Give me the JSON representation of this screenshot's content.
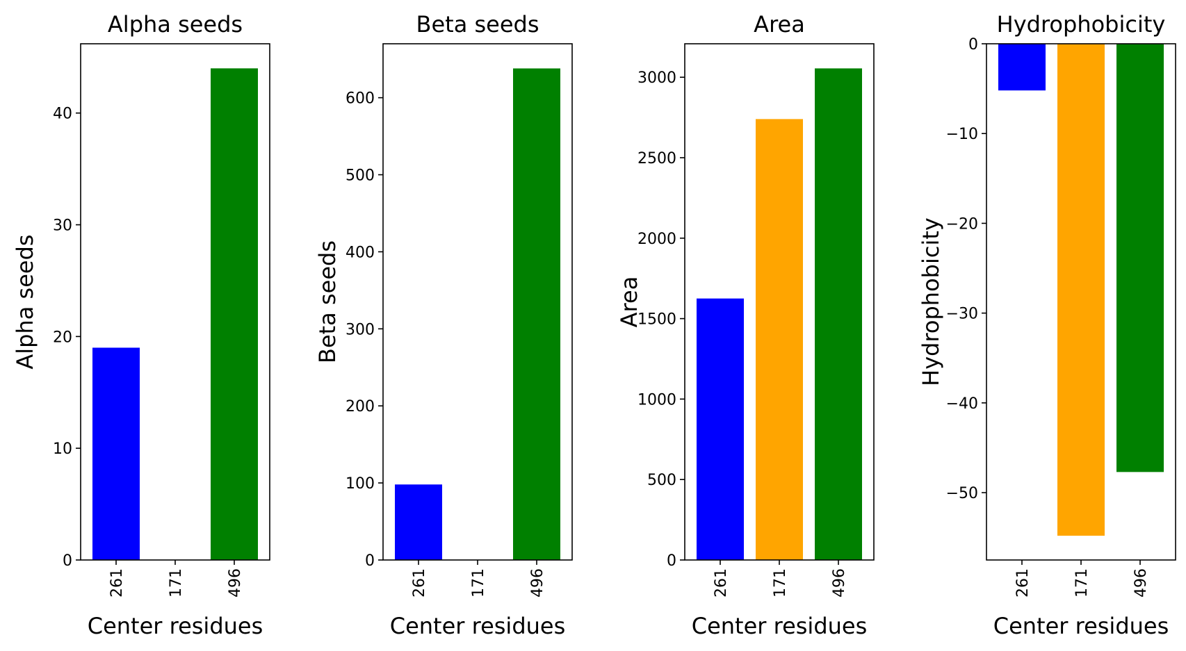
{
  "chart_data": [
    {
      "type": "bar",
      "title": "Alpha seeds",
      "xlabel": "Center residues",
      "ylabel": "Alpha seeds",
      "categories": [
        "261",
        "171",
        "496"
      ],
      "values": [
        19,
        0,
        44
      ],
      "colors": [
        "#0000ff",
        "#ffa500",
        "#008000"
      ],
      "ylim": [
        0,
        46.2
      ],
      "yticks": [
        0,
        10,
        20,
        30,
        40
      ],
      "ytick_labels": [
        "0",
        "10",
        "20",
        "30",
        "40"
      ],
      "grid": false
    },
    {
      "type": "bar",
      "title": "Beta seeds",
      "xlabel": "Center residues",
      "ylabel": "Beta seeds",
      "categories": [
        "261",
        "171",
        "496"
      ],
      "values": [
        98,
        0,
        638
      ],
      "colors": [
        "#0000ff",
        "#ffa500",
        "#008000"
      ],
      "ylim": [
        0,
        670
      ],
      "yticks": [
        0,
        100,
        200,
        300,
        400,
        500,
        600
      ],
      "ytick_labels": [
        "0",
        "100",
        "200",
        "300",
        "400",
        "500",
        "600"
      ],
      "grid": false
    },
    {
      "type": "bar",
      "title": "Area",
      "xlabel": "Center residues",
      "ylabel": "Area",
      "categories": [
        "261",
        "171",
        "496"
      ],
      "values": [
        1625,
        2740,
        3055
      ],
      "colors": [
        "#0000ff",
        "#ffa500",
        "#008000"
      ],
      "ylim": [
        0,
        3208
      ],
      "yticks": [
        0,
        500,
        1000,
        1500,
        2000,
        2500,
        3000
      ],
      "ytick_labels": [
        "0",
        "500",
        "1000",
        "1500",
        "2000",
        "2500",
        "3000"
      ],
      "grid": false
    },
    {
      "type": "bar",
      "title": "Hydrophobicity",
      "xlabel": "Center residues",
      "ylabel": "Hydrophobicity",
      "categories": [
        "261",
        "171",
        "496"
      ],
      "values": [
        -5.2,
        -54.8,
        -47.7
      ],
      "colors": [
        "#0000ff",
        "#ffa500",
        "#008000"
      ],
      "ylim": [
        -57.5,
        0
      ],
      "yticks": [
        0,
        -10,
        -20,
        -30,
        -40,
        -50
      ],
      "ytick_labels": [
        "0",
        "−10",
        "−20",
        "−30",
        "−40",
        "−50"
      ],
      "grid": false
    }
  ]
}
